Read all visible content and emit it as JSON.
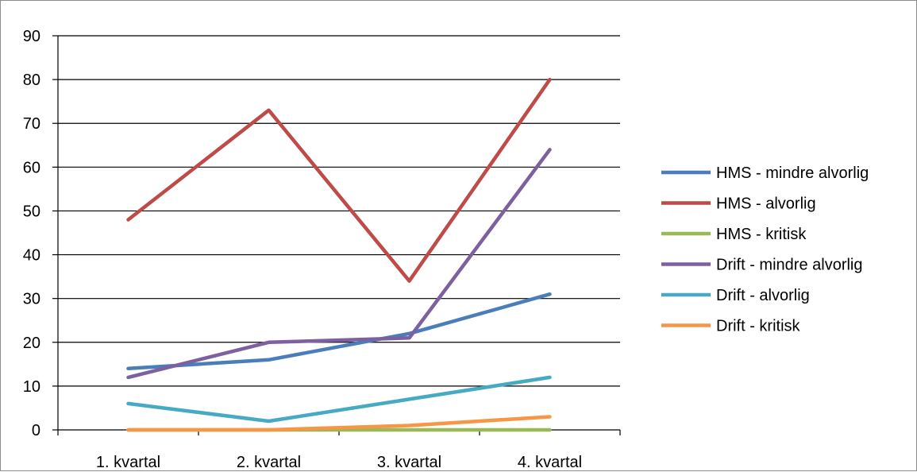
{
  "chart_data": {
    "type": "line",
    "categories": [
      "1. kvartal",
      "2. kvartal",
      "3. kvartal",
      "4. kvartal"
    ],
    "ylim": [
      0,
      90
    ],
    "yticks": [
      0,
      10,
      20,
      30,
      40,
      50,
      60,
      70,
      80,
      90
    ],
    "grid": true,
    "legend_position": "right",
    "title": "",
    "xlabel": "",
    "ylabel": "",
    "series": [
      {
        "name": "HMS - mindre alvorlig",
        "color": "#4a7ebb",
        "values": [
          14,
          16,
          22,
          31
        ]
      },
      {
        "name": "HMS - alvorlig",
        "color": "#be4b48",
        "values": [
          48,
          73,
          34,
          80
        ]
      },
      {
        "name": "HMS - kritisk",
        "color": "#98b954",
        "values": [
          0,
          0,
          0,
          0
        ]
      },
      {
        "name": "Drift - mindre alvorlig",
        "color": "#7d60a0",
        "values": [
          12,
          20,
          21,
          64
        ]
      },
      {
        "name": "Drift - alvorlig",
        "color": "#46aac5",
        "values": [
          6,
          2,
          7,
          12
        ]
      },
      {
        "name": "Drift - kritisk",
        "color": "#f79646",
        "values": [
          0,
          0,
          1,
          3
        ]
      }
    ]
  }
}
